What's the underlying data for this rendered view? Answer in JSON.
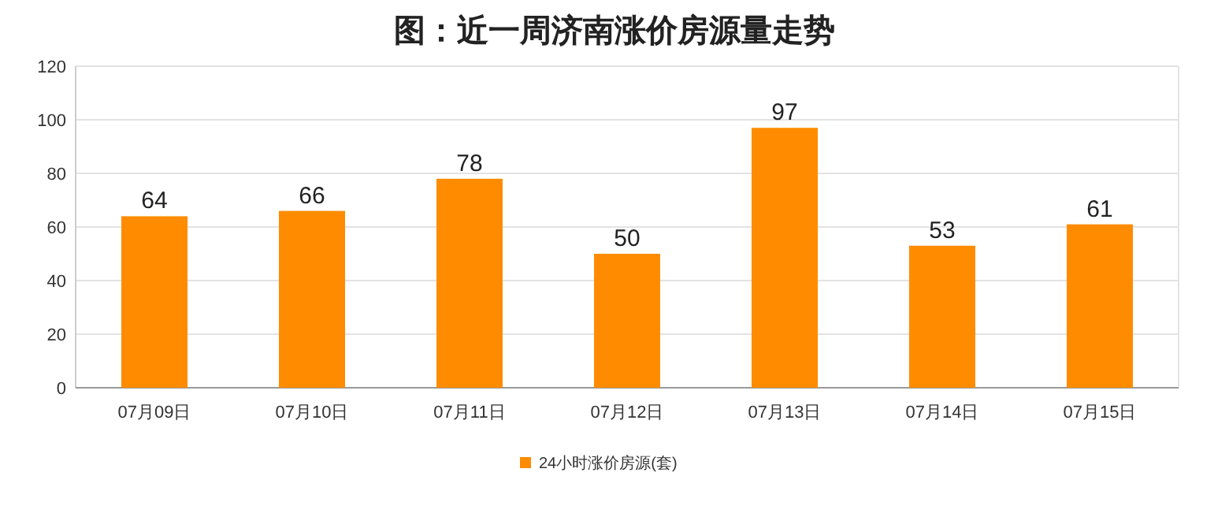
{
  "chart_data": {
    "type": "bar",
    "title": "图：近一周济南涨价房源量走势",
    "categories": [
      "07月09日",
      "07月10日",
      "07月11日",
      "07月12日",
      "07月13日",
      "07月14日",
      "07月15日"
    ],
    "series": [
      {
        "name": "24小时涨价房源(套)",
        "color": "#ff8c00",
        "values": [
          64,
          66,
          78,
          50,
          97,
          53,
          61
        ]
      }
    ],
    "ylim": [
      0,
      120
    ],
    "yticks": [
      0,
      20,
      40,
      60,
      80,
      100,
      120
    ],
    "grid": "y",
    "legend": "bottom",
    "data_labels": true
  }
}
